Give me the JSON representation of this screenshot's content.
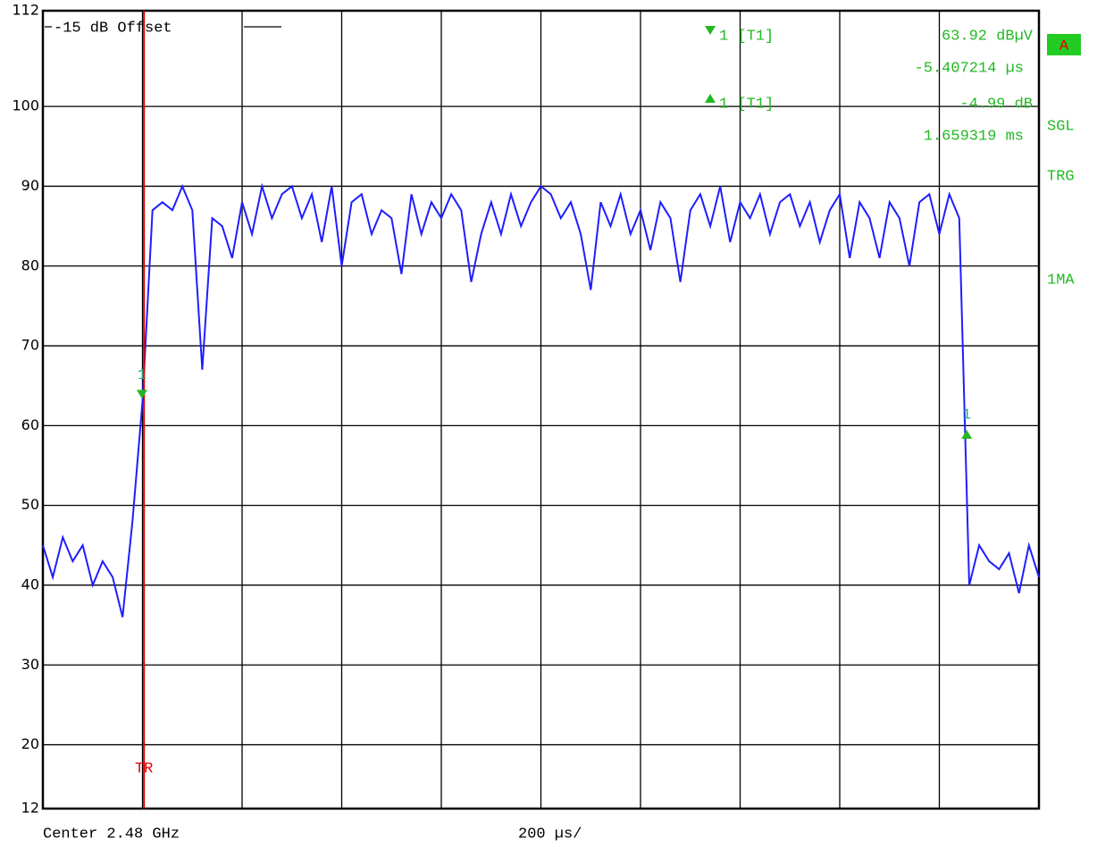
{
  "chart_data": {
    "type": "line",
    "xlim": [
      0,
      2000
    ],
    "xticks": [
      0,
      200,
      400,
      600,
      800,
      1000,
      1200,
      1400,
      1600,
      1800,
      2000
    ],
    "ylim": [
      12,
      112
    ],
    "yticks": [
      12,
      20,
      30,
      40,
      50,
      60,
      70,
      80,
      90,
      100,
      112
    ],
    "grid": true,
    "x": [
      0,
      20,
      40,
      60,
      80,
      100,
      120,
      140,
      160,
      180,
      200,
      220,
      240,
      260,
      280,
      300,
      320,
      340,
      360,
      380,
      400,
      420,
      440,
      460,
      480,
      500,
      520,
      540,
      560,
      580,
      600,
      620,
      640,
      660,
      680,
      700,
      720,
      740,
      760,
      780,
      800,
      820,
      840,
      860,
      880,
      900,
      920,
      940,
      960,
      980,
      1000,
      1020,
      1040,
      1060,
      1080,
      1100,
      1120,
      1140,
      1160,
      1180,
      1200,
      1220,
      1240,
      1260,
      1280,
      1300,
      1320,
      1340,
      1360,
      1380,
      1400,
      1420,
      1440,
      1460,
      1480,
      1500,
      1520,
      1540,
      1560,
      1580,
      1600,
      1620,
      1640,
      1660,
      1680,
      1700,
      1720,
      1740,
      1760,
      1780,
      1800,
      1820,
      1840,
      1860,
      1880,
      1900,
      1920,
      1940,
      1960,
      1980,
      2000
    ],
    "series": [
      {
        "color": "#1e1eff",
        "values": [
          45,
          41,
          46,
          43,
          45,
          40,
          43,
          41,
          36,
          48,
          63,
          87,
          88,
          87,
          90,
          87,
          67,
          86,
          85,
          81,
          88,
          84,
          90,
          86,
          89,
          90,
          86,
          89,
          83,
          90,
          80,
          88,
          89,
          84,
          87,
          86,
          79,
          89,
          84,
          88,
          86,
          89,
          87,
          78,
          84,
          88,
          84,
          89,
          85,
          88,
          90,
          89,
          86,
          88,
          84,
          77,
          88,
          85,
          89,
          84,
          87,
          82,
          88,
          86,
          78,
          87,
          89,
          85,
          90,
          83,
          88,
          86,
          89,
          84,
          88,
          89,
          85,
          88,
          83,
          87,
          89,
          81,
          88,
          86,
          81,
          88,
          86,
          80,
          88,
          89,
          84,
          89,
          86,
          40,
          45,
          43,
          42,
          44,
          39,
          45,
          41
        ]
      }
    ],
    "trigger": {
      "label": "TR",
      "x": 203,
      "color": "#e00000"
    },
    "display_line": "-15 dB Offset",
    "markers": [
      {
        "tag": "1",
        "label": "1 [T1]",
        "readout": "63.92 dBµV",
        "time": "-5.407214 µs",
        "x": 199,
        "y": 63.92,
        "direction": "down"
      },
      {
        "tag": "1",
        "label": "1 [T1]",
        "readout": "-4.99 dB",
        "time": "1.659319 ms",
        "x": 1855,
        "y": 58.9,
        "direction": "up"
      }
    ],
    "status": {
      "trace": "A",
      "sweep": "SGL",
      "trigger": "TRG",
      "detector": "1MA"
    },
    "footer": {
      "center": "Center 2.48 GHz",
      "span": "200 µs/"
    }
  }
}
